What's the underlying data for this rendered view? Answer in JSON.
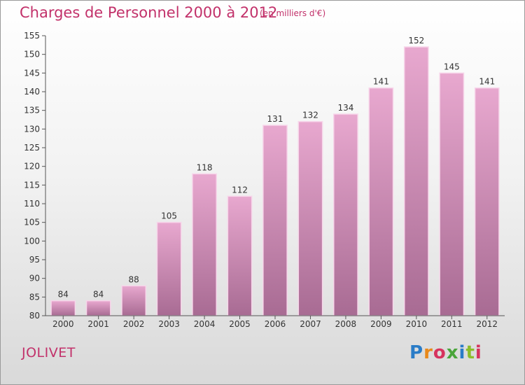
{
  "header": {
    "title": "Charges de Personnel 2000 à 2012",
    "subtitle": "(en milliers d'€)"
  },
  "footer": {
    "commune": "JOLIVET",
    "logo_text": "Proxiti"
  },
  "colors": {
    "title": "#c2316a",
    "bar_top": "#e8a8cf",
    "bar_bottom": "#a86b93",
    "bar_edge": "#f7d6ea"
  },
  "chart_data": {
    "type": "bar",
    "title": "Charges de Personnel 2000 à 2012",
    "subtitle": "(en milliers d'€)",
    "categories": [
      "2000",
      "2001",
      "2002",
      "2003",
      "2004",
      "2005",
      "2006",
      "2007",
      "2008",
      "2009",
      "2010",
      "2011",
      "2012"
    ],
    "values": [
      84,
      84,
      88,
      105,
      118,
      112,
      131,
      132,
      134,
      141,
      152,
      145,
      141
    ],
    "ylim": [
      80,
      155
    ],
    "yticks": [
      80,
      85,
      90,
      95,
      100,
      105,
      110,
      115,
      120,
      125,
      130,
      135,
      140,
      145,
      150,
      155
    ],
    "grid": false,
    "data_labels": true
  }
}
